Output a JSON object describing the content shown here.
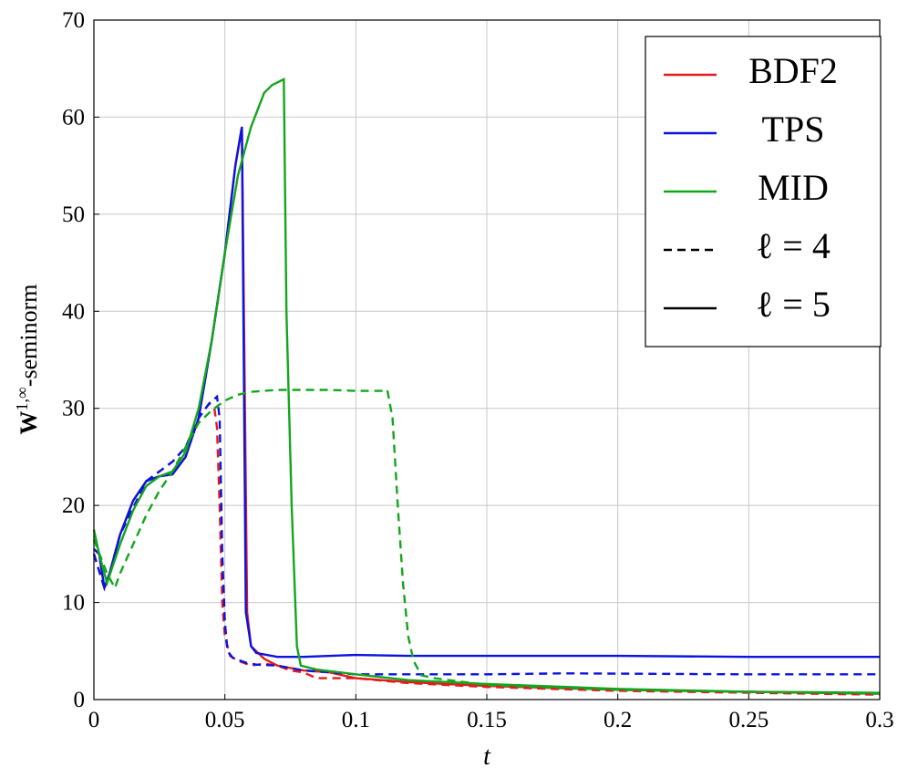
{
  "chart_data": {
    "type": "line",
    "xlabel": "t",
    "ylabel": [
      "W",
      "1,∞",
      "-seminorm"
    ],
    "xlim": [
      0,
      0.3
    ],
    "ylim": [
      0,
      70
    ],
    "xticks": [
      0,
      0.05,
      0.1,
      0.15,
      0.2,
      0.25,
      0.3
    ],
    "yticks": [
      0,
      10,
      20,
      30,
      40,
      50,
      60,
      70
    ],
    "grid": true,
    "legend": "upper right",
    "line_styles": [
      {
        "name": "ℓ = 4",
        "dash": "dashed"
      },
      {
        "name": "ℓ = 5",
        "dash": "solid"
      }
    ],
    "series": [
      {
        "name": "BDF2",
        "color": "#e41a1c",
        "levels": [
          {
            "x": [
              0,
              0.004,
              0.006,
              0.01,
              0.02,
              0.03,
              0.035,
              0.04,
              0.044,
              0.046,
              0.047,
              0.048,
              0.049,
              0.05,
              0.052,
              0.055,
              0.06,
              0.065,
              0.07,
              0.075,
              0.08,
              0.085,
              0.09,
              0.1,
              0.12,
              0.15,
              0.2,
              0.25,
              0.3
            ],
            "values": [
              15,
              11.5,
              13,
              17,
              22.5,
              24.5,
              26,
              29,
              30.5,
              30,
              28,
              20,
              10,
              6.5,
              4.5,
              4,
              3.5,
              3.7,
              3.5,
              3,
              2.8,
              2.2,
              2.2,
              2.2,
              1.7,
              1.3,
              0.9,
              0.7,
              0.5
            ]
          },
          {
            "x": [
              0,
              0.002,
              0.004,
              0.006,
              0.01,
              0.015,
              0.02,
              0.025,
              0.03,
              0.035,
              0.04,
              0.045,
              0.05,
              0.054,
              0.0565,
              0.0585,
              0.06,
              0.065,
              0.07,
              0.08,
              0.09,
              0.1,
              0.12,
              0.15,
              0.2,
              0.25,
              0.3
            ],
            "values": [
              15.5,
              15,
              11.5,
              13,
              17,
              20.5,
              22.5,
              23,
              23.2,
              25,
              29,
              37,
              46,
              55,
              59,
              9,
              5.5,
              4.2,
              3.5,
              3,
              2.8,
              2.2,
              1.8,
              1.4,
              1,
              0.8,
              0.6
            ]
          }
        ]
      },
      {
        "name": "TPS",
        "color": "#0a14e0",
        "levels": [
          {
            "x": [
              0,
              0.004,
              0.006,
              0.01,
              0.02,
              0.03,
              0.035,
              0.04,
              0.044,
              0.047,
              0.048,
              0.049,
              0.05,
              0.051,
              0.053,
              0.058,
              0.062,
              0.07,
              0.08,
              0.09,
              0.1,
              0.15,
              0.18,
              0.25,
              0.3
            ],
            "values": [
              15,
              11.5,
              13,
              17,
              22.5,
              24.5,
              26,
              29,
              30.5,
              31.2,
              29,
              15,
              8,
              5,
              4.3,
              3.8,
              3.6,
              3.5,
              3,
              2.8,
              2.6,
              2.6,
              2.7,
              2.6,
              2.6
            ]
          },
          {
            "x": [
              0,
              0.002,
              0.004,
              0.006,
              0.01,
              0.015,
              0.02,
              0.025,
              0.03,
              0.035,
              0.04,
              0.045,
              0.05,
              0.054,
              0.0565,
              0.058,
              0.06,
              0.062,
              0.07,
              0.08,
              0.1,
              0.12,
              0.2,
              0.25,
              0.3
            ],
            "values": [
              15.5,
              15,
              11.5,
              13,
              17,
              20.5,
              22.5,
              23,
              23.2,
              25,
              29,
              37,
              46,
              55,
              59,
              9,
              5.5,
              4.8,
              4.4,
              4.4,
              4.6,
              4.5,
              4.5,
              4.4,
              4.4
            ]
          }
        ]
      },
      {
        "name": "MID",
        "color": "#12a61c",
        "levels": [
          {
            "x": [
              0,
              0.005,
              0.008,
              0.01,
              0.015,
              0.02,
              0.025,
              0.03,
              0.035,
              0.04,
              0.045,
              0.05,
              0.055,
              0.06,
              0.07,
              0.08,
              0.09,
              0.1,
              0.11,
              0.112,
              0.114,
              0.116,
              0.118,
              0.12,
              0.122,
              0.125,
              0.13,
              0.15,
              0.2,
              0.25,
              0.3
            ],
            "values": [
              16.5,
              13,
              11.5,
              13,
              16,
              19,
              21.5,
              23.5,
              26,
              28.5,
              29.8,
              30.8,
              31.4,
              31.7,
              31.9,
              31.9,
              31.9,
              31.8,
              31.8,
              31.9,
              29,
              20,
              12,
              6.5,
              4,
              2.5,
              2.2,
              1.5,
              1,
              0.8,
              0.6
            ]
          },
          {
            "x": [
              0,
              0.002,
              0.005,
              0.01,
              0.015,
              0.02,
              0.025,
              0.03,
              0.035,
              0.04,
              0.045,
              0.05,
              0.055,
              0.06,
              0.065,
              0.068,
              0.0725,
              0.0735,
              0.0755,
              0.0775,
              0.079,
              0.085,
              0.1,
              0.12,
              0.15,
              0.2,
              0.25,
              0.3
            ],
            "values": [
              17.5,
              15,
              12,
              16,
              19.5,
              22,
              23,
              23.5,
              25.5,
              30,
              37,
              46,
              54,
              59,
              62.5,
              63.3,
              63.9,
              40,
              20,
              5.5,
              3.5,
              3.1,
              2.6,
              2,
              1.6,
              1.1,
              0.8,
              0.7
            ]
          }
        ]
      }
    ]
  }
}
